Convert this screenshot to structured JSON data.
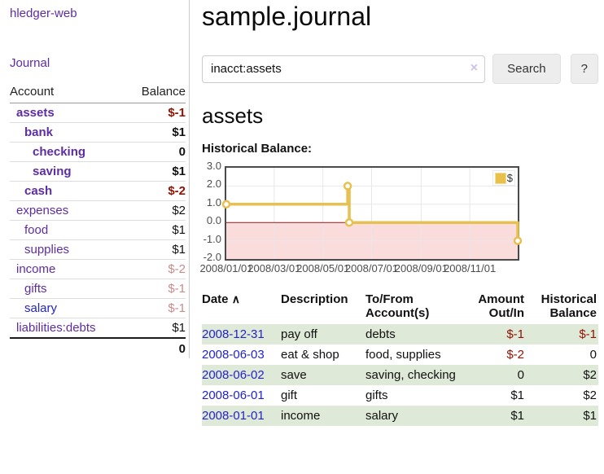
{
  "sidebar": {
    "brand": "hledger-web",
    "nav": [
      {
        "label": "Journal"
      }
    ],
    "accounts_table": {
      "headers": [
        "Account",
        "Balance"
      ],
      "rows": [
        {
          "name": "assets",
          "indent": 1,
          "bold": true,
          "balance": "$-1",
          "balance_color": "negative"
        },
        {
          "name": "bank",
          "indent": 2,
          "bold": true,
          "balance": "$1",
          "balance_color": "normal"
        },
        {
          "name": "checking",
          "indent": 3,
          "bold": true,
          "balance": "0",
          "balance_color": "normal"
        },
        {
          "name": "saving",
          "indent": 3,
          "bold": true,
          "balance": "$1",
          "balance_color": "normal"
        },
        {
          "name": "cash",
          "indent": 2,
          "bold": true,
          "balance": "$-2",
          "balance_color": "negative"
        },
        {
          "name": "expenses",
          "indent": 1,
          "bold": false,
          "balance": "$2",
          "balance_color": "normal"
        },
        {
          "name": "food",
          "indent": 2,
          "bold": false,
          "balance": "$1",
          "balance_color": "normal"
        },
        {
          "name": "supplies",
          "indent": 2,
          "bold": false,
          "balance": "$1",
          "balance_color": "normal"
        },
        {
          "name": "income",
          "indent": 1,
          "bold": false,
          "balance": "$-2",
          "balance_color": "muted-negative"
        },
        {
          "name": "gifts",
          "indent": 2,
          "bold": false,
          "balance": "$-1",
          "balance_color": "muted-negative"
        },
        {
          "name": "salary",
          "indent": 2,
          "bold": false,
          "balance": "$-1",
          "balance_color": "muted-negative",
          "link_color": "blue"
        },
        {
          "name": "liabilities:debts",
          "indent": 1,
          "bold": false,
          "balance": "$1",
          "balance_color": "normal"
        }
      ],
      "total": "0"
    }
  },
  "header": {
    "title": "sample.journal"
  },
  "search": {
    "value": "inacct:assets",
    "clear_icon": "×",
    "button": "Search",
    "help_button": "?"
  },
  "account_page": {
    "heading": "assets",
    "chart_label": "Historical Balance:"
  },
  "chart_data": {
    "type": "line",
    "title": "Historical Balance",
    "step": true,
    "series": [
      {
        "name": "$",
        "color": "#e7c050",
        "points": [
          [
            "2008-01-01",
            1
          ],
          [
            "2008-06-01",
            2
          ],
          [
            "2008-06-03",
            0
          ],
          [
            "2008-12-31",
            -1
          ]
        ]
      }
    ],
    "x_range": [
      "2008-01-01",
      "2008-12-31"
    ],
    "ylim": [
      -2,
      3
    ],
    "y_ticks": [
      3.0,
      2.0,
      1.0,
      0.0,
      -1.0,
      -2.0
    ],
    "x_tick_dates": [
      "2008-01-01",
      "2008-03-01",
      "2008-05-01",
      "2008-07-01",
      "2008-09-01",
      "2008-11-01"
    ],
    "x_tick_labels": [
      "2008/01/01",
      "2008/03/01",
      "2008/05/01",
      "2008/07/01",
      "2008/09/01",
      "2008/11/01"
    ],
    "grid": true,
    "legend_position": "top-right",
    "negative_region_fill": "#fbdcdc",
    "zero_line_color": "#8b1d1d"
  },
  "register_table": {
    "headers": {
      "date": "Date",
      "description": "Description",
      "accounts": "To/From Account(s)",
      "amount": "Amount Out/In",
      "balance": "Historical Balance"
    },
    "sort_icon": "∧",
    "rows": [
      {
        "date": "2008-12-31",
        "description": "pay off",
        "accounts": "debts",
        "amount": "$-1",
        "amount_negative": true,
        "balance": "$-1",
        "balance_negative": true,
        "striped": true
      },
      {
        "date": "2008-06-03",
        "description": "eat & shop",
        "accounts": "food, supplies",
        "amount": "$-2",
        "amount_negative": true,
        "balance": "0",
        "balance_negative": false,
        "striped": false
      },
      {
        "date": "2008-06-02",
        "description": "save",
        "accounts": "saving, checking",
        "amount": "0",
        "amount_negative": false,
        "balance": "$2",
        "balance_negative": false,
        "striped": true
      },
      {
        "date": "2008-06-01",
        "description": "gift",
        "accounts": "gifts",
        "amount": "$1",
        "amount_negative": false,
        "balance": "$2",
        "balance_negative": false,
        "striped": false
      },
      {
        "date": "2008-01-01",
        "description": "income",
        "accounts": "salary",
        "amount": "$1",
        "amount_negative": false,
        "balance": "$1",
        "balance_negative": false,
        "striped": true
      }
    ]
  },
  "colors": {
    "accent_purple": "#5e2ca5",
    "link_blue": "#2323cc",
    "negative_red": "#941100",
    "muted_negative_red": "#c98b8b",
    "stripe_green": "#dfe9d8",
    "chart_line_gold": "#e7c050",
    "chart_negative_fill": "#fbdcdc",
    "chart_zero_line": "#8b1d1d"
  }
}
